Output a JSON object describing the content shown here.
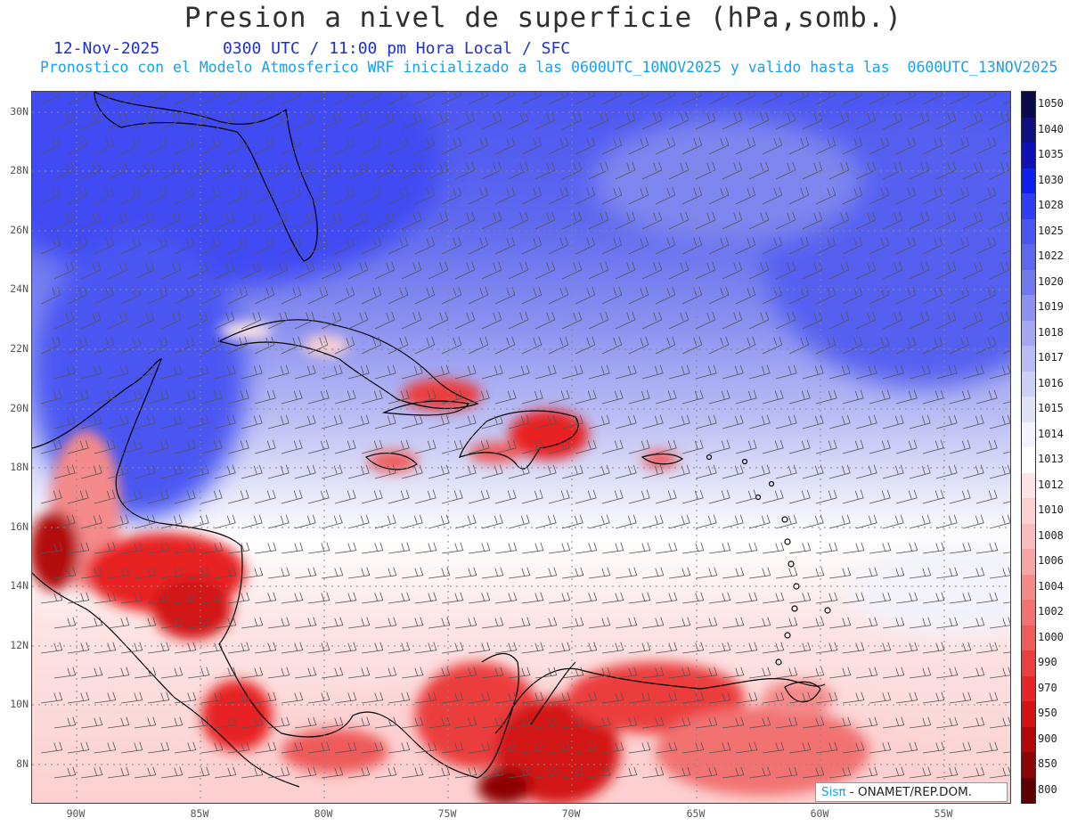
{
  "title": "Presion a nivel de superficie (hPa,somb.)",
  "date": "12-Nov-2025",
  "time_info": "0300 UTC / 11:00 pm Hora Local / SFC",
  "model_info": "Pronostico con el Modelo Atmosferico WRF inicializado a las 0600UTC_10NOV2025 y valido hasta las  0600UTC_13NOV2025",
  "lat_labels": [
    "30N",
    "28N",
    "26N",
    "24N",
    "22N",
    "20N",
    "18N",
    "16N",
    "14N",
    "12N",
    "10N",
    "8N"
  ],
  "lon_labels": [
    "90W",
    "85W",
    "80W",
    "75W",
    "70W",
    "65W",
    "60W",
    "55W"
  ],
  "colorbar": {
    "labels": [
      "1050",
      "1040",
      "1035",
      "1030",
      "1028",
      "1025",
      "1022",
      "1020",
      "1019",
      "1018",
      "1017",
      "1016",
      "1015",
      "1014",
      "1013",
      "1012",
      "1010",
      "1008",
      "1006",
      "1004",
      "1002",
      "1000",
      "990",
      "970",
      "950",
      "900",
      "850",
      "800"
    ],
    "colors": [
      "#0b0b4a",
      "#101080",
      "#1010b8",
      "#0c20f0",
      "#2f3ef5",
      "#4a56f2",
      "#5e68ef",
      "#7078ee",
      "#8c92f0",
      "#a4a8f2",
      "#b8bbf4",
      "#cdd0f6",
      "#e0e2f8",
      "#f2f3fc",
      "#ffffff",
      "#fde4e4",
      "#fcd0d0",
      "#f9bcbc",
      "#f7a4a4",
      "#f48a8a",
      "#f27272",
      "#ef5a5a",
      "#ec3e3e",
      "#e82424",
      "#d31212",
      "#b40808",
      "#8c0404",
      "#5c0202"
    ]
  },
  "credit": {
    "brand": "Sisπ",
    "text": " - ONAMET/REP.DOM."
  },
  "colors": {
    "title": "#303030",
    "subtitle1": "#1c2fd8",
    "subtitle2": "#16a0f0"
  }
}
